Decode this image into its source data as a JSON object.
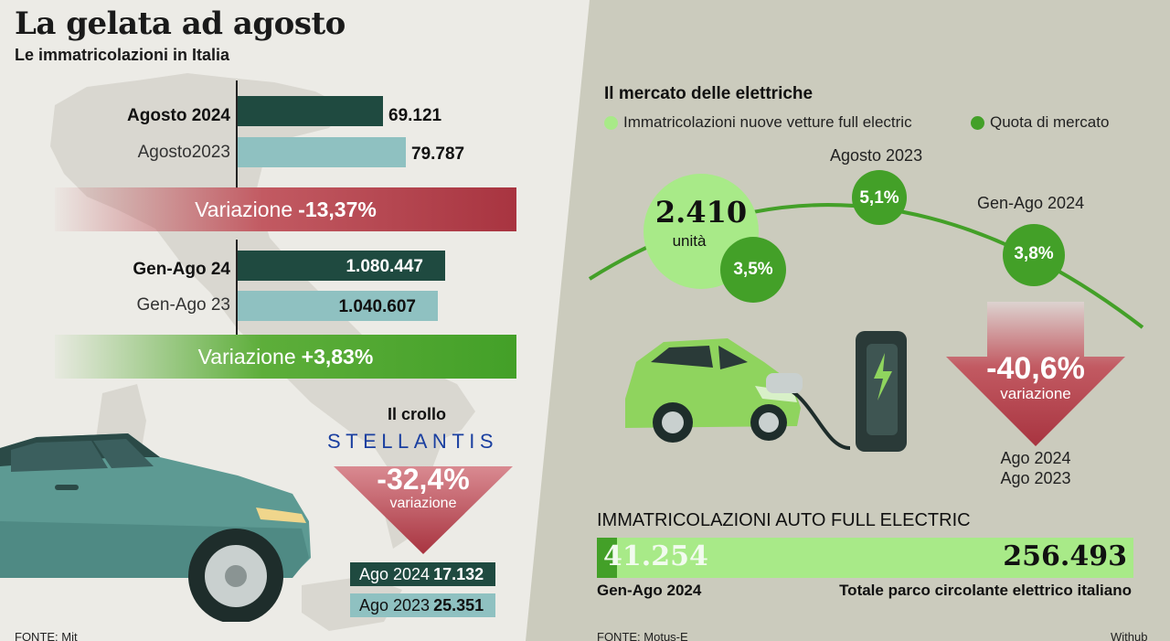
{
  "title": "La gelata ad agosto",
  "subtitle": "Le immatricolazioni in Italia",
  "colors": {
    "dark_teal": "#1f4a40",
    "light_teal": "#8fc1c1",
    "negative_red": "#a83440",
    "positive_green": "#43a028",
    "light_green": "#a8ea88",
    "stellantis_blue": "#1a3fa0"
  },
  "chart_data": [
    {
      "type": "bar",
      "orientation": "horizontal",
      "categories": [
        "Agosto 2024",
        "Agosto2023",
        "Gen-Ago 24",
        "Gen-Ago 23"
      ],
      "values": [
        69121,
        79787,
        1080447,
        1040607
      ],
      "value_labels": [
        "69.121",
        "79.787",
        "1.080.447",
        "1.040.607"
      ],
      "variations": [
        {
          "label": "Variazione",
          "value": "-13,37%"
        },
        {
          "label": "Variazione",
          "value": "+3,83%"
        }
      ]
    },
    {
      "type": "table",
      "heading": "Il crollo",
      "brand": "STELLANTIS",
      "change": "-32,4%",
      "change_label": "variazione",
      "rows": [
        {
          "label": "Ago 2024",
          "value": "17.132"
        },
        {
          "label": "Ago 2023",
          "value": "25.351"
        }
      ]
    },
    {
      "type": "scatter",
      "title": "Il mercato delle elettriche",
      "legend": [
        "Immatricolazioni nuove vetture full electric",
        "Quota di mercato"
      ],
      "units_value": "2.410",
      "units_label": "unità",
      "shares": [
        {
          "label": "",
          "value": "3,5%"
        },
        {
          "label": "Agosto 2023",
          "value": "5,1%"
        },
        {
          "label": "Gen-Ago 2024",
          "value": "3,8%"
        }
      ],
      "change": "-40,6%",
      "change_label": "variazione",
      "change_periods": [
        "Ago 2024",
        "Ago 2023"
      ]
    },
    {
      "type": "bar",
      "title": "IMMATRICOLAZIONI AUTO FULL ELECTRIC",
      "part_value": "41.254",
      "part_label": "Gen-Ago 2024",
      "total_value": "256.493",
      "total_label": "Totale parco circolante elettrico italiano"
    }
  ],
  "sources": {
    "left": "FONTE: Mit",
    "right": "FONTE: Motus-E",
    "credit": "Withub"
  },
  "icons": [
    "italy-map",
    "car-illustration",
    "electric-car-icon",
    "charging-station-icon",
    "lightning-bolt-icon",
    "down-arrow-icon"
  ]
}
